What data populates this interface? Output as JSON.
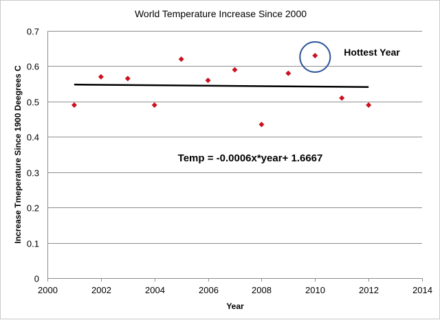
{
  "chart_data": {
    "type": "scatter",
    "title": "World Temperature Increase Since 2000",
    "xlabel": "Year",
    "ylabel": "Increase Tmeperature Since 1900 Deegrees C",
    "xlim": [
      2000,
      2014
    ],
    "ylim": [
      0,
      0.7
    ],
    "xticks": [
      2000,
      2002,
      2004,
      2006,
      2008,
      2010,
      2012,
      2014
    ],
    "yticks": [
      0,
      0.1,
      0.2,
      0.3,
      0.4,
      0.5,
      0.6,
      0.7
    ],
    "grid": "horizontal",
    "legend": "none",
    "marker": "diamond",
    "marker_color": "#cc1020",
    "points": [
      {
        "x": 2001,
        "y": 0.49
      },
      {
        "x": 2002,
        "y": 0.57
      },
      {
        "x": 2003,
        "y": 0.565
      },
      {
        "x": 2004,
        "y": 0.49
      },
      {
        "x": 2005,
        "y": 0.62
      },
      {
        "x": 2006,
        "y": 0.56
      },
      {
        "x": 2007,
        "y": 0.59
      },
      {
        "x": 2008,
        "y": 0.435
      },
      {
        "x": 2009,
        "y": 0.58
      },
      {
        "x": 2010,
        "y": 0.63
      },
      {
        "x": 2011,
        "y": 0.51
      },
      {
        "x": 2012,
        "y": 0.49
      }
    ],
    "trendline": {
      "color": "#000000",
      "start": {
        "x": 2001,
        "y": 0.548
      },
      "end": {
        "x": 2012,
        "y": 0.541
      }
    },
    "annotations": [
      {
        "id": "hottest",
        "text": "Hottest Year",
        "x": 2010,
        "y": 0.63,
        "circle_color": "#2e5597"
      },
      {
        "id": "equation",
        "text": "Temp = -0.0006x*year+ 1.6667",
        "x": 2005,
        "y": 0.34
      }
    ]
  }
}
